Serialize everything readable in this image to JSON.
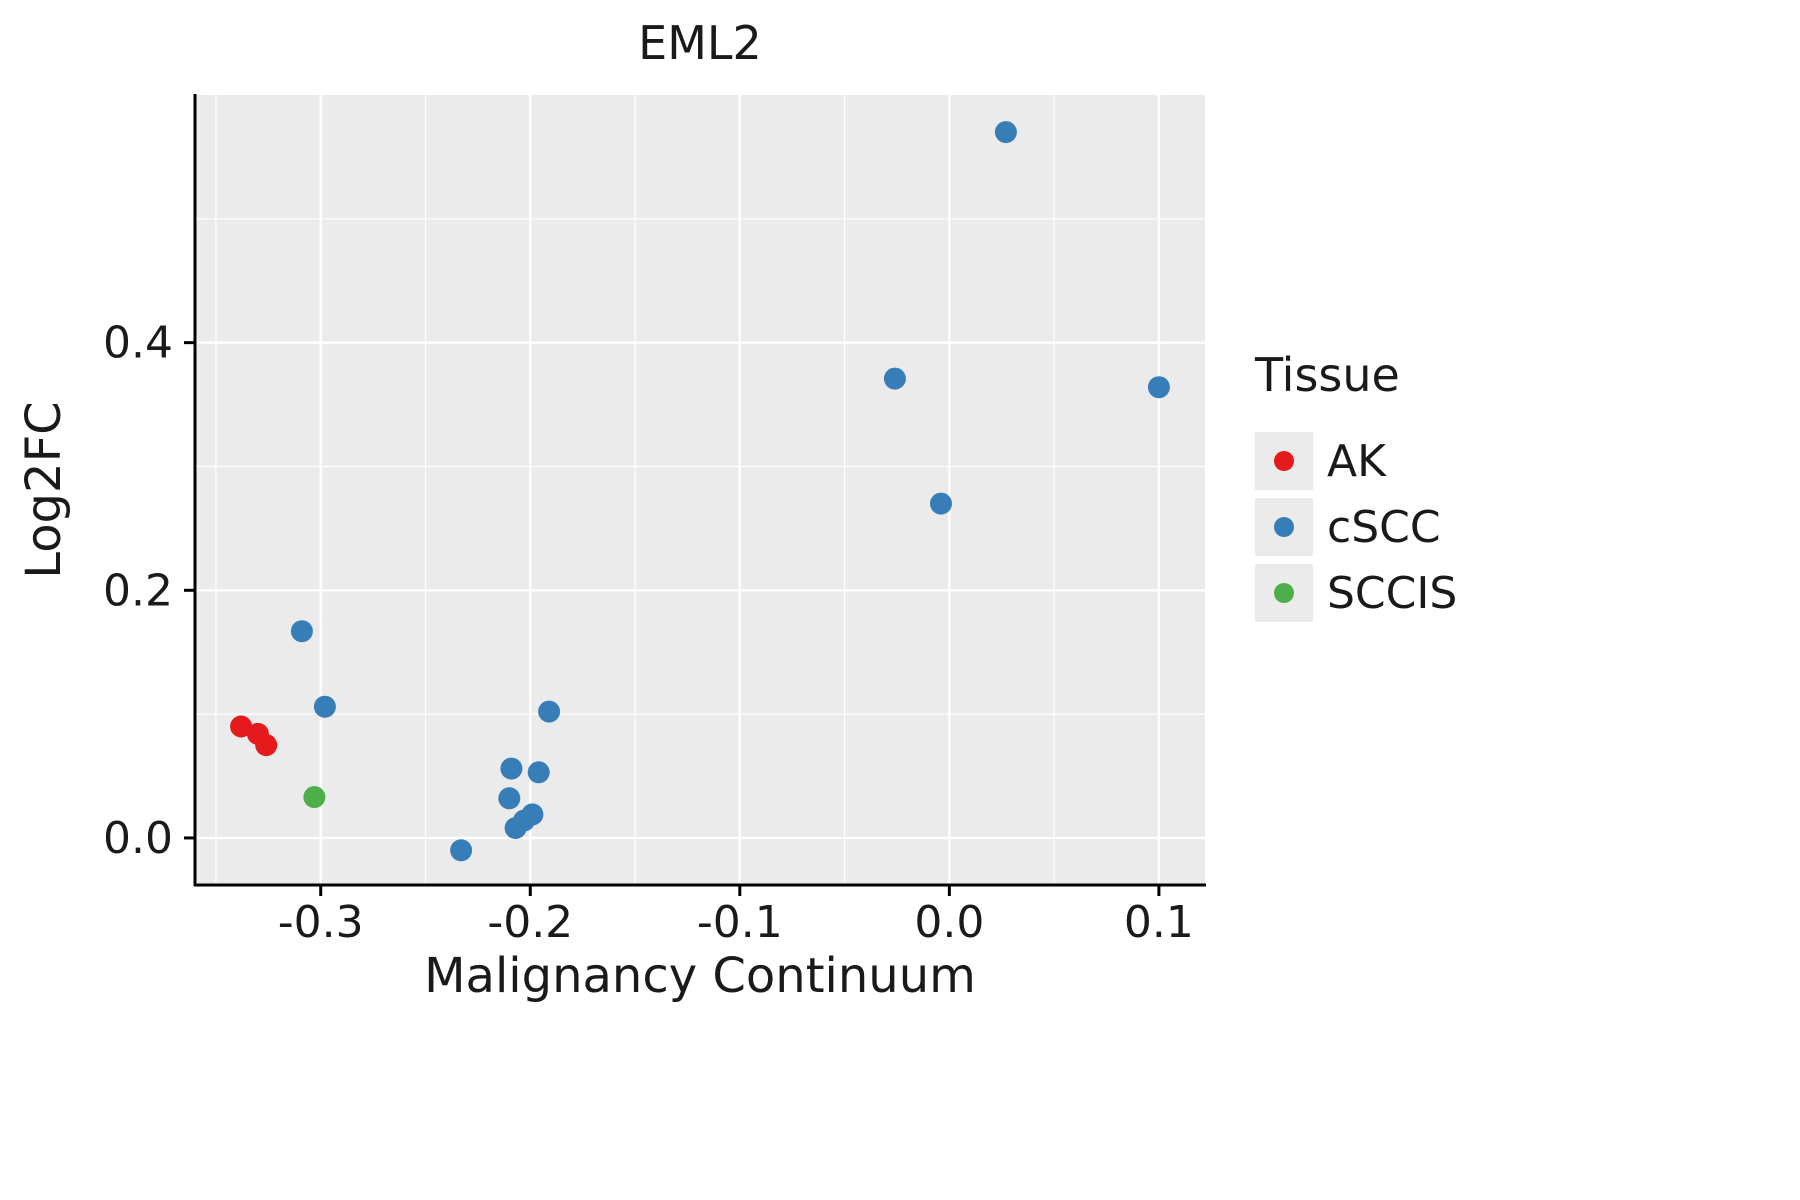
{
  "chart_data": {
    "type": "scatter",
    "title": "EML2",
    "xlabel": "Malignancy Continuum",
    "ylabel": "Log2FC",
    "xlim": [
      -0.36,
      0.122
    ],
    "ylim": [
      -0.038,
      0.6
    ],
    "x_ticks": [
      -0.3,
      -0.2,
      -0.1,
      0.0,
      0.1
    ],
    "x_tick_labels": [
      "-0.3",
      "-0.2",
      "-0.1",
      "0.0",
      "0.1"
    ],
    "y_ticks": [
      0.0,
      0.2,
      0.4
    ],
    "y_tick_labels": [
      "0.0",
      "0.2",
      "0.4"
    ],
    "x_minor": [
      -0.35,
      -0.25,
      -0.15,
      -0.05,
      0.05
    ],
    "y_minor": [
      0.1,
      0.3,
      0.5
    ],
    "grid": true,
    "panel_bg": "#EBEBEB",
    "grid_color": "#FFFFFF",
    "axis_color": "#000000",
    "text_color": "#1a1a1a",
    "legend_title": "Tissue",
    "legend_position": "right",
    "point_radius": 11,
    "series": [
      {
        "name": "AK",
        "color": "#E41A1C",
        "points": [
          [
            -0.338,
            0.09
          ],
          [
            -0.33,
            0.084
          ],
          [
            -0.326,
            0.075
          ]
        ]
      },
      {
        "name": "cSCC",
        "color": "#377EB8",
        "points": [
          [
            0.027,
            0.57
          ],
          [
            -0.026,
            0.371
          ],
          [
            0.1,
            0.364
          ],
          [
            -0.004,
            0.27
          ],
          [
            -0.309,
            0.167
          ],
          [
            -0.298,
            0.106
          ],
          [
            -0.191,
            0.102
          ],
          [
            -0.209,
            0.056
          ],
          [
            -0.196,
            0.053
          ],
          [
            -0.21,
            0.032
          ],
          [
            -0.199,
            0.019
          ],
          [
            -0.203,
            0.014
          ],
          [
            -0.207,
            0.008
          ],
          [
            -0.233,
            -0.01
          ]
        ]
      },
      {
        "name": "SCCIS",
        "color": "#4DAF4A",
        "points": [
          [
            -0.303,
            0.033
          ]
        ]
      }
    ]
  }
}
